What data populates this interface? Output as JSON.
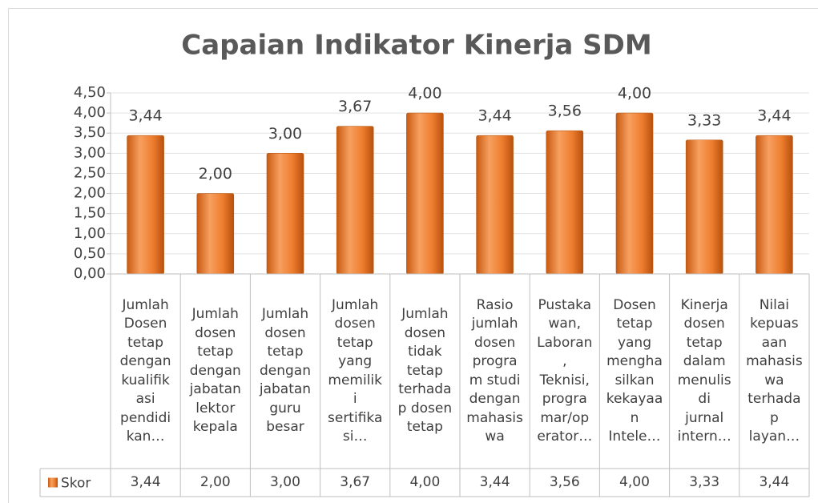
{
  "chart_data": {
    "type": "bar",
    "title": "Capaian Indikator Kinerja SDM",
    "categories": [
      "Jumlah\nDosen\ntetap\ndengan\nkualifik\nasi\npendidi\nkan…",
      "Jumlah\ndosen\ntetap\ndengan\njabatan\nlektor\nkepala",
      "Jumlah\ndosen\ntetap\ndengan\njabatan\nguru\nbesar",
      "Jumlah\ndosen\ntetap\nyang\nmemilik\ni\nsertifika\nsi…",
      "Jumlah\ndosen\ntidak\ntetap\nterhada\np dosen\ntetap",
      "Rasio\njumlah\ndosen\nprogra\nm studi\ndengan\nmahasis\nwa",
      "Pustaka\nwan,\nLaboran\n,\nTeknisi,\nprogra\nmar/op\nerator…",
      "Dosen\ntetap\nyang\nmengha\nsilkan\nkekayaa\nn\nIntele…",
      "Kinerja\ndosen\ntetap\ndalam\nmenulis\ndi\njurnal\nintern…",
      "Nilai\nkepuas\naan\nmahasis\nwa\nterhada\np\nlayan…"
    ],
    "series": [
      {
        "name": "Skor",
        "color": "#ed7d31",
        "values": [
          3.44,
          2.0,
          3.0,
          3.67,
          4.0,
          3.44,
          3.56,
          4.0,
          3.33,
          3.44
        ],
        "value_labels": [
          "3,44",
          "2,00",
          "3,00",
          "3,67",
          "4,00",
          "3,44",
          "3,56",
          "4,00",
          "3,33",
          "3,44"
        ]
      }
    ],
    "ylim": [
      0,
      4.5
    ],
    "yticks": [
      {
        "value": 0,
        "label": "0,00"
      },
      {
        "value": 0.5,
        "label": "0,50"
      },
      {
        "value": 1,
        "label": "1,00"
      },
      {
        "value": 1.5,
        "label": "1,50"
      },
      {
        "value": 2,
        "label": "2,00"
      },
      {
        "value": 2.5,
        "label": "2,50"
      },
      {
        "value": 3,
        "label": "3,00"
      },
      {
        "value": 3.5,
        "label": "3,50"
      },
      {
        "value": 4,
        "label": "4,00"
      },
      {
        "value": 4.5,
        "label": "4,50"
      }
    ],
    "grid": true,
    "data_table": true
  }
}
